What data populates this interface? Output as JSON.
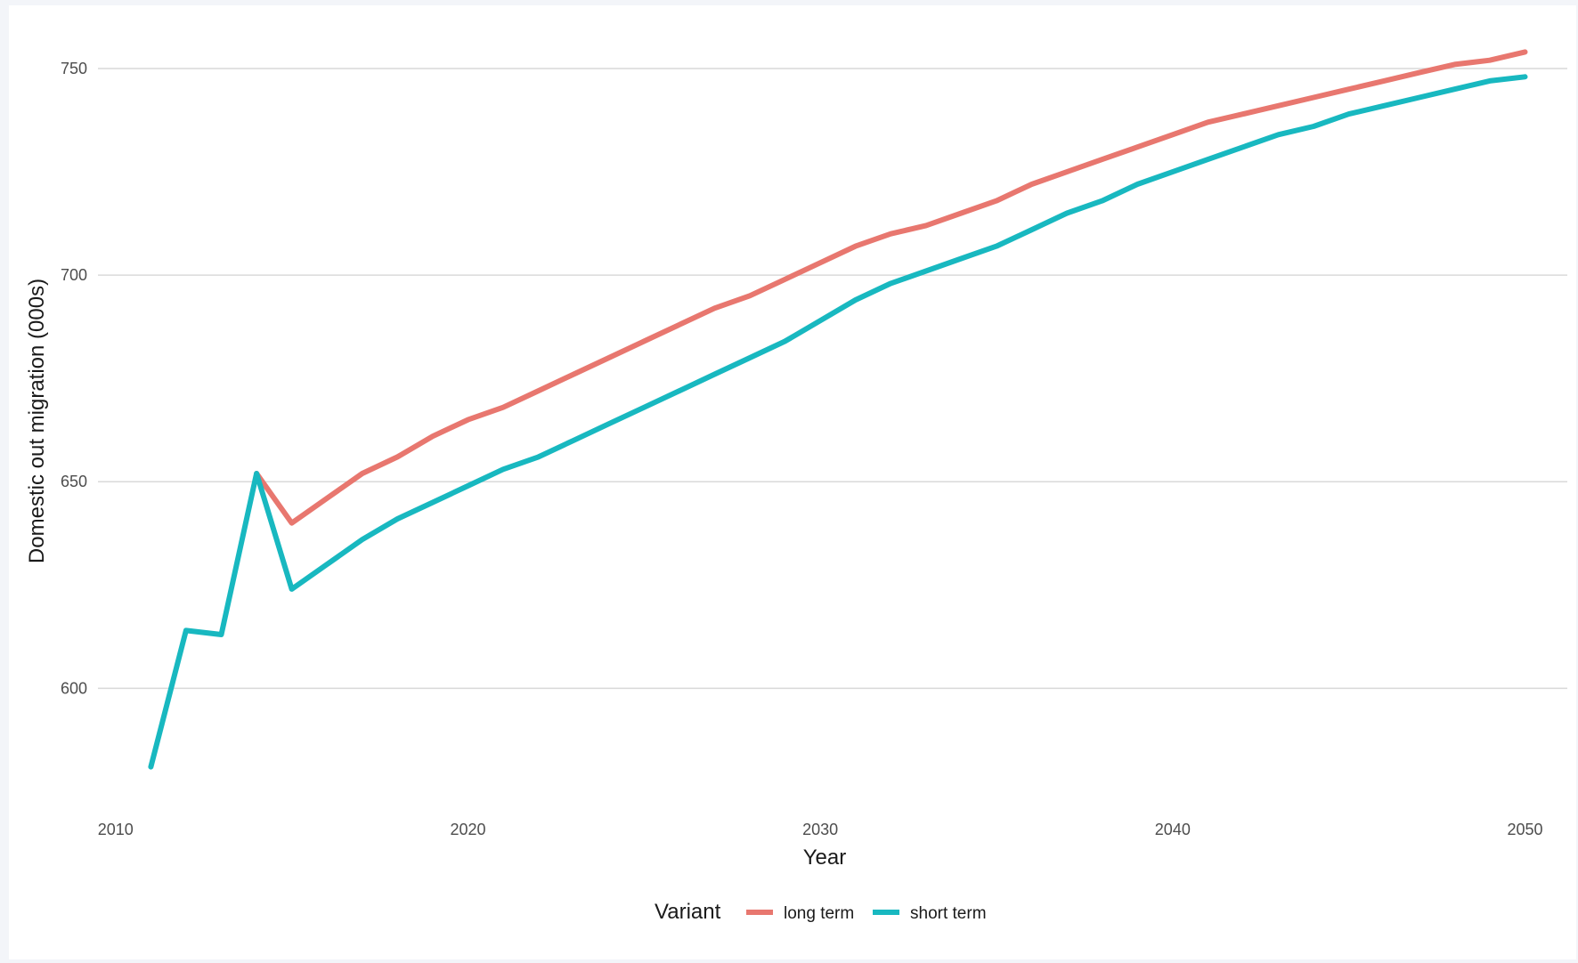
{
  "chart_data": {
    "type": "line",
    "xlabel": "Year",
    "ylabel": "Domestic out migration (000s)",
    "xlim": [
      2009.5,
      2051.2
    ],
    "ylim": [
      571,
      764
    ],
    "x_ticks": [
      2010,
      2020,
      2030,
      2040,
      2050
    ],
    "x_tick_labels": [
      "2010",
      "2020",
      "2030",
      "2040",
      "2050"
    ],
    "y_ticks": [
      600,
      650,
      700,
      750
    ],
    "y_tick_labels": [
      "600",
      "650",
      "700",
      "750"
    ],
    "grid": {
      "horizontal_major": true,
      "vertical": false
    },
    "legend": {
      "title": "Variant",
      "position": "bottom",
      "direction": "horizontal"
    },
    "series": [
      {
        "name": "long term",
        "color": "#e8776f",
        "x": [
          2014,
          2015,
          2016,
          2017,
          2018,
          2019,
          2020,
          2021,
          2022,
          2023,
          2024,
          2025,
          2026,
          2027,
          2028,
          2029,
          2030,
          2031,
          2032,
          2033,
          2034,
          2035,
          2036,
          2037,
          2038,
          2039,
          2040,
          2041,
          2042,
          2043,
          2044,
          2045,
          2046,
          2047,
          2048,
          2049,
          2050
        ],
        "values": [
          652,
          640,
          646,
          652,
          656,
          661,
          665,
          668,
          672,
          676,
          680,
          684,
          688,
          692,
          695,
          699,
          703,
          707,
          710,
          712,
          715,
          718,
          722,
          725,
          728,
          731,
          734,
          737,
          739,
          741,
          743,
          745,
          747,
          749,
          751,
          752,
          754
        ]
      },
      {
        "name": "short term",
        "color": "#18b8c0",
        "x": [
          2011,
          2012,
          2013,
          2014,
          2015,
          2016,
          2017,
          2018,
          2019,
          2020,
          2021,
          2022,
          2023,
          2024,
          2025,
          2026,
          2027,
          2028,
          2029,
          2030,
          2031,
          2032,
          2033,
          2034,
          2035,
          2036,
          2037,
          2038,
          2039,
          2040,
          2041,
          2042,
          2043,
          2044,
          2045,
          2046,
          2047,
          2048,
          2049,
          2050
        ],
        "values": [
          581,
          614,
          613,
          652,
          624,
          630,
          636,
          641,
          645,
          649,
          653,
          656,
          660,
          664,
          668,
          672,
          676,
          680,
          684,
          689,
          694,
          698,
          701,
          704,
          707,
          711,
          715,
          718,
          722,
          725,
          728,
          731,
          734,
          736,
          739,
          741,
          743,
          745,
          747,
          748
        ]
      }
    ]
  }
}
